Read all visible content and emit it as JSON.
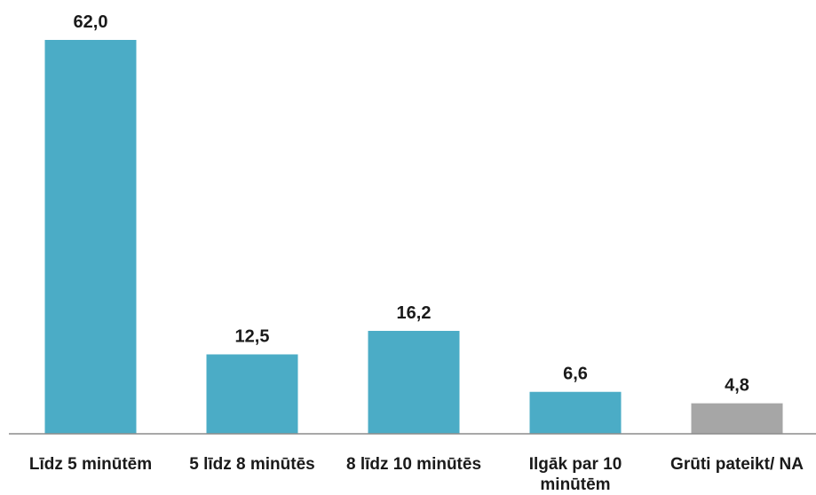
{
  "chart_data": {
    "type": "bar",
    "categories": [
      [
        "Līdz 5 minūtēm"
      ],
      [
        "5 līdz 8 minūtēs"
      ],
      [
        "8 līdz 10 minūtēs"
      ],
      [
        "Ilgāk par 10",
        "minūtēm"
      ],
      [
        "Grūti pateikt/ NA"
      ]
    ],
    "values": [
      62.0,
      12.5,
      16.2,
      6.6,
      4.8
    ],
    "value_labels": [
      "62,0",
      "12,5",
      "16,2",
      "6,6",
      "4,8"
    ],
    "bar_colors": [
      "#4bacc6",
      "#4bacc6",
      "#4bacc6",
      "#4bacc6",
      "#a6a6a6"
    ],
    "axis_color": "#8c8c8c",
    "ylim": [
      0,
      62.0
    ],
    "grid": false,
    "legend": "none"
  }
}
